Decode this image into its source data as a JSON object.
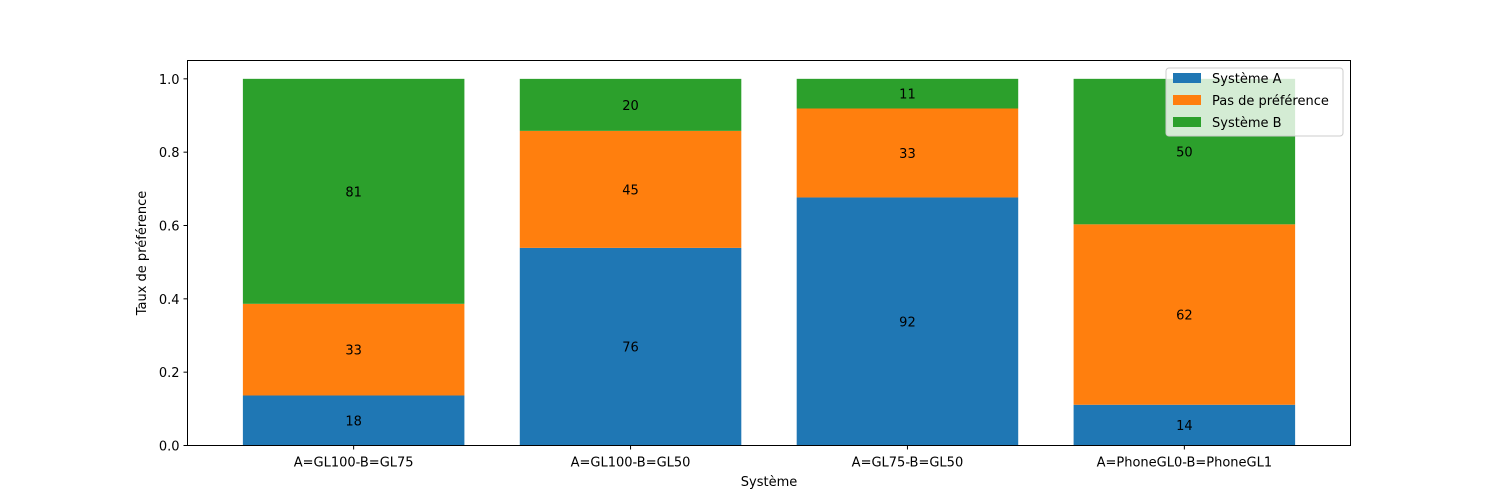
{
  "chart_data": {
    "type": "bar",
    "stacked": true,
    "title": "",
    "xlabel": "Système",
    "ylabel": "Taux de préférence",
    "ylim": [
      0,
      1.05
    ],
    "yticks": [
      "0.0",
      "0.2",
      "0.4",
      "0.6",
      "0.8",
      "1.0"
    ],
    "grid": false,
    "legend_position": "top-right",
    "categories": [
      "A=GL100-B=GL75",
      "A=GL100-B=GL50",
      "A=GL75-B=GL50",
      "A=PhoneGL0-B=PhoneGL1"
    ],
    "series": [
      {
        "name": "Système A",
        "color": "#1f77b4",
        "counts": [
          18,
          76,
          92,
          14
        ],
        "values": [
          0.1364,
          0.539,
          0.6765,
          0.1111
        ]
      },
      {
        "name": "Pas de préférence",
        "color": "#ff7f0e",
        "counts": [
          33,
          45,
          33,
          62
        ],
        "values": [
          0.25,
          0.3191,
          0.2426,
          0.4921
        ]
      },
      {
        "name": "Système B",
        "color": "#2ca02c",
        "counts": [
          81,
          20,
          11,
          50
        ],
        "values": [
          0.6136,
          0.1418,
          0.0809,
          0.3968
        ]
      }
    ]
  }
}
